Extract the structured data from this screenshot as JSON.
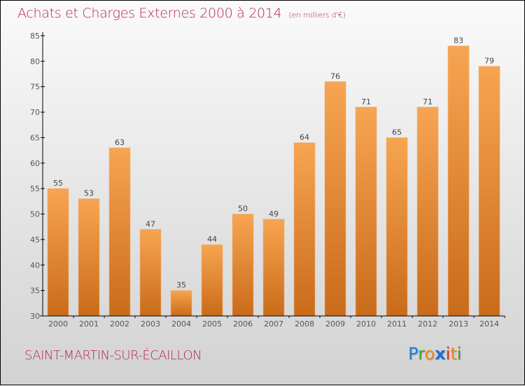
{
  "header": {
    "title": "Achats et Charges Externes 2000 à 2014",
    "unit": "(en milliers d'€)"
  },
  "footer": {
    "city": "SAINT-MARTIN-SUR-ÉCAILLON",
    "logo": {
      "letters": [
        {
          "char": "P",
          "color": "#1f7fd1"
        },
        {
          "char": "r",
          "color": "#3aa03a"
        },
        {
          "char": "o",
          "color": "#f08a1c"
        },
        {
          "char": "x",
          "color": "#1f6fd0"
        },
        {
          "char": "i",
          "color": "#e0312b"
        },
        {
          "char": "t",
          "color": "#f08a1c"
        },
        {
          "char": "i",
          "color": "#3aa03a"
        }
      ]
    }
  },
  "colors": {
    "title": "#b5245a",
    "bar_top": "#f7a552",
    "bar_bottom": "#c96b1a",
    "axis": "#000000"
  },
  "chart_data": {
    "type": "bar",
    "title": "Achats et Charges Externes 2000 à 2014",
    "subtitle": "(en milliers d'€)",
    "xlabel": "",
    "ylabel": "",
    "categories": [
      "2000",
      "2001",
      "2002",
      "2003",
      "2004",
      "2005",
      "2006",
      "2007",
      "2008",
      "2009",
      "2010",
      "2011",
      "2012",
      "2013",
      "2014"
    ],
    "values": [
      55,
      53,
      63,
      47,
      35,
      44,
      50,
      49,
      64,
      76,
      71,
      65,
      71,
      83,
      79
    ],
    "ylim": [
      30,
      85
    ],
    "yticks": [
      30,
      35,
      40,
      45,
      50,
      55,
      60,
      65,
      70,
      75,
      80,
      85
    ],
    "grid": false,
    "legend": "none"
  }
}
